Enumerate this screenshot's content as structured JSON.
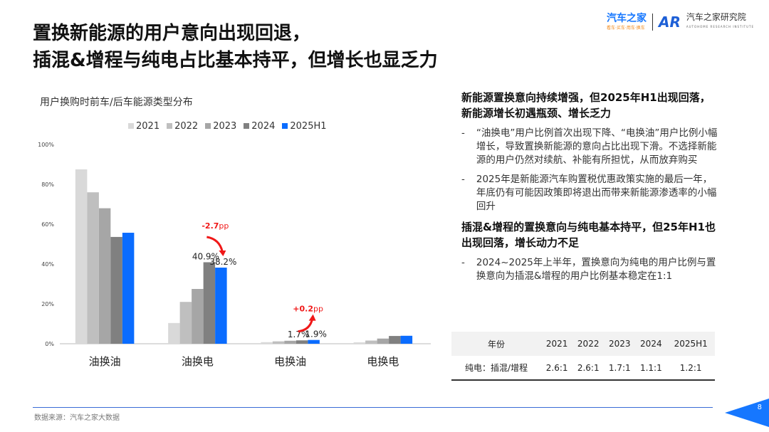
{
  "title": [
    "置换新能源的用户意向出现回退，",
    "插混&增程与纯电占比基本持平，但增长也显乏力"
  ],
  "logo": {
    "brand": "汽车之家",
    "brand_sub": "看车·买车·用车·换车",
    "institute": "汽车之家研究院",
    "institute_en": "AUTOHOME RESEARCH INSTITUTE"
  },
  "chart_data": {
    "type": "bar",
    "title": "用户换购时前车/后车能源类型分布",
    "categories": [
      "油换油",
      "油换电",
      "电换油",
      "电换电"
    ],
    "yticks": [
      "0%",
      "20%",
      "40%",
      "60%",
      "80%",
      "100%"
    ],
    "ylim": [
      0,
      100
    ],
    "legend": "top",
    "series": [
      {
        "name": "2021",
        "color": "#d9d9d9",
        "values": [
          87.5,
          10.4,
          0.8,
          0.7
        ]
      },
      {
        "name": "2022",
        "color": "#bfbfbf",
        "values": [
          76,
          21,
          1.2,
          1.6
        ]
      },
      {
        "name": "2023",
        "color": "#a6a6a6",
        "values": [
          68,
          27.5,
          1.5,
          2.6
        ]
      },
      {
        "name": "2024",
        "color": "#808080",
        "values": [
          53.6,
          40.9,
          1.7,
          3.9
        ]
      },
      {
        "name": "2025H1",
        "color": "#0a6cff",
        "values": [
          55.7,
          38.2,
          1.9,
          4.0
        ]
      }
    ],
    "data_labels": [
      {
        "category": "油换电",
        "series": "2024",
        "text": "40.9%"
      },
      {
        "category": "油换电",
        "series": "2025H1",
        "text": "38.2%"
      },
      {
        "category": "电换油",
        "series": "2024",
        "text": "1.7%"
      },
      {
        "category": "电换油",
        "series": "2025H1",
        "text": "1.9%"
      }
    ],
    "annotations": [
      {
        "category": "油换电",
        "num": "-2.7",
        "unit": "pp",
        "direction": "down"
      },
      {
        "category": "电换油",
        "num": "+0.2",
        "unit": "pp",
        "direction": "up"
      }
    ]
  },
  "right": {
    "h1": "新能源置换意向持续增强，但2025年H1出现回落，新能源增长初遇瓶颈、增长乏力",
    "b1": "“油换电”用户比例首次出现下降、“电换油”用户比例小幅增长，导致置换新能源的意向占比出现下滑。不选择新能源的用户仍然对续航、补能有所担忧，从而放弃购买",
    "b2": "2025年是新能源汽车购置税优惠政策实施的最后一年，年底仍有可能因政策即将退出而带来新能源渗透率的小幅回升",
    "h2": "插混&增程的置换意向与纯电基本持平，但25年H1也出现回落，增长动力不足",
    "b3": "2024~2025年上半年，置换意向为纯电的用户比例与置换意向为插混&增程的用户比例基本稳定在1:1",
    "dash": "-"
  },
  "table": {
    "headers": [
      "年份",
      "2021",
      "2022",
      "2023",
      "2024",
      "2025H1"
    ],
    "row": [
      "纯电：插混/增程",
      "2.6:1",
      "2.6:1",
      "1.7:1",
      "1.1:1",
      "1.2:1"
    ]
  },
  "source": "数据来源：汽车之家大数据",
  "page": "8"
}
